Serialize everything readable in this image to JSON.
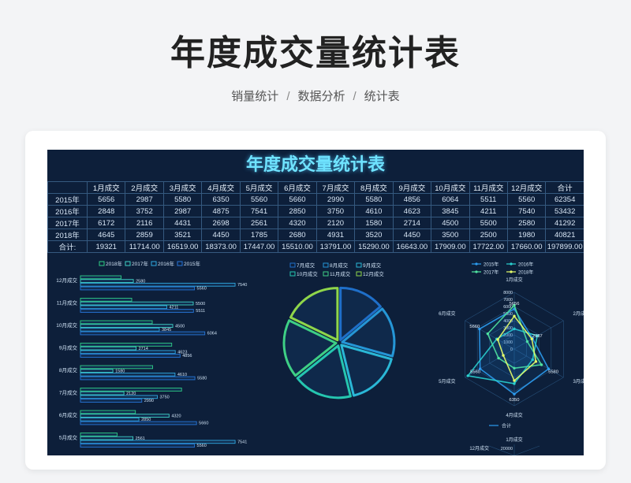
{
  "page": {
    "title": "年度成交量统计表",
    "breadcrumb": [
      "销量统计",
      "数据分析",
      "统计表"
    ],
    "breadcrumb_sep": "/"
  },
  "sheet": {
    "title": "年度成交量统计表",
    "corner": "",
    "columns": [
      "1月成交",
      "2月成交",
      "3月成交",
      "4月成交",
      "5月成交",
      "6月成交",
      "7月成交",
      "8月成交",
      "9月成交",
      "10月成交",
      "11月成交",
      "12月成交",
      "合计"
    ],
    "rows": [
      {
        "label": "2015年",
        "cells": [
          "5656",
          "2987",
          "5580",
          "6350",
          "5560",
          "5660",
          "2990",
          "5580",
          "4856",
          "6064",
          "5511",
          "5560",
          "62354"
        ]
      },
      {
        "label": "2016年",
        "cells": [
          "2848",
          "3752",
          "2987",
          "4875",
          "7541",
          "2850",
          "3750",
          "4610",
          "4623",
          "3845",
          "4211",
          "7540",
          "53432"
        ]
      },
      {
        "label": "2017年",
        "cells": [
          "6172",
          "2116",
          "4431",
          "2698",
          "2561",
          "4320",
          "2120",
          "1580",
          "2714",
          "4500",
          "5500",
          "2580",
          "41292"
        ]
      },
      {
        "label": "2018年",
        "cells": [
          "4645",
          "2859",
          "3521",
          "4450",
          "1785",
          "2680",
          "4931",
          "3520",
          "4450",
          "3500",
          "2500",
          "1980",
          "40821"
        ]
      },
      {
        "label": "合计:",
        "cells": [
          "19321",
          "11714.00",
          "16519.00",
          "18373.00",
          "17447.00",
          "15510.00",
          "13791.00",
          "15290.00",
          "16643.00",
          "17909.00",
          "17722.00",
          "17660.00",
          "197899.00"
        ]
      }
    ]
  },
  "chart_data": [
    {
      "type": "bar",
      "orientation": "horizontal",
      "legend": [
        "2018年",
        "2017年",
        "2016年",
        "2015年"
      ],
      "legend_position": "top",
      "categories": [
        "12月成交",
        "11月成交",
        "10月成交",
        "9月成交",
        "8月成交",
        "7月成交",
        "6月成交",
        "5月成交"
      ],
      "series": [
        {
          "name": "2018年",
          "values": [
            1980,
            2500,
            3500,
            4450,
            3520,
            4931,
            2680,
            1785
          ]
        },
        {
          "name": "2017年",
          "values": [
            2580,
            5500,
            4500,
            2714,
            1580,
            2120,
            4320,
            2561
          ]
        },
        {
          "name": "2016年",
          "values": [
            7540,
            4211,
            3845,
            4623,
            4610,
            3750,
            2850,
            7541
          ]
        },
        {
          "name": "2015年",
          "values": [
            5560,
            5511,
            6064,
            4856,
            5580,
            2990,
            5660,
            5560
          ]
        }
      ],
      "xlim": [
        0,
        8000
      ],
      "colors": [
        "#2ecf86",
        "#3fd1c6",
        "#2fa8e0",
        "#2676d9"
      ]
    },
    {
      "type": "pie",
      "legend": [
        "7月成交",
        "8月成交",
        "9月成交",
        "10月成交",
        "11月成交",
        "12月成交"
      ],
      "legend_position": "top",
      "values": [
        13791,
        15290,
        16643,
        17909,
        17722,
        17660
      ],
      "colors": [
        "#1f6fc9",
        "#2596d6",
        "#2ab7d6",
        "#25c6b0",
        "#3ecf85",
        "#8fd64a"
      ]
    },
    {
      "type": "radar",
      "legend": [
        "2015年",
        "2016年",
        "2017年",
        "2018年"
      ],
      "legend_position": "top",
      "axes": [
        "1月成交",
        "2月成交",
        "3月成交",
        "4月成交",
        "5月成交",
        "6月成交"
      ],
      "range": [
        0,
        8000
      ],
      "ticks": [
        "8000",
        "7000",
        "6000",
        "5000",
        "4000",
        "3000",
        "2000",
        "1000",
        "0"
      ],
      "series": [
        {
          "name": "2015年",
          "values": [
            5656,
            2987,
            5580,
            6350,
            5560,
            5660
          ]
        },
        {
          "name": "2016年",
          "values": [
            2848,
            3752,
            2987,
            4875,
            7541,
            2850
          ]
        },
        {
          "name": "2017年",
          "values": [
            6172,
            2116,
            4431,
            2698,
            2561,
            4320
          ]
        },
        {
          "name": "2018年",
          "values": [
            4645,
            2859,
            3521,
            4450,
            1785,
            2680
          ]
        }
      ],
      "point_labels": [
        {
          "axis": 0,
          "text": "5656"
        },
        {
          "axis": 1,
          "text": "2987"
        },
        {
          "axis": 2,
          "text": "5580"
        },
        {
          "axis": 3,
          "text": "6350"
        },
        {
          "axis": 4,
          "text": "5560"
        },
        {
          "axis": 5,
          "text": "5660"
        }
      ],
      "colors": [
        "#2c9cf0",
        "#2ad2d0",
        "#4fe3a0",
        "#e7ff6a"
      ]
    },
    {
      "type": "radar",
      "legend": [
        "合计"
      ],
      "partial_labels": [
        "12月成交",
        "1月成交",
        "20000"
      ],
      "colors": [
        "#2c9cf0"
      ]
    }
  ],
  "colors": {
    "sheet_bg": "#0d1f3a",
    "sheet_title": "#6fe3ff",
    "table_border": "#35597f",
    "text": "#d8e6f5"
  }
}
